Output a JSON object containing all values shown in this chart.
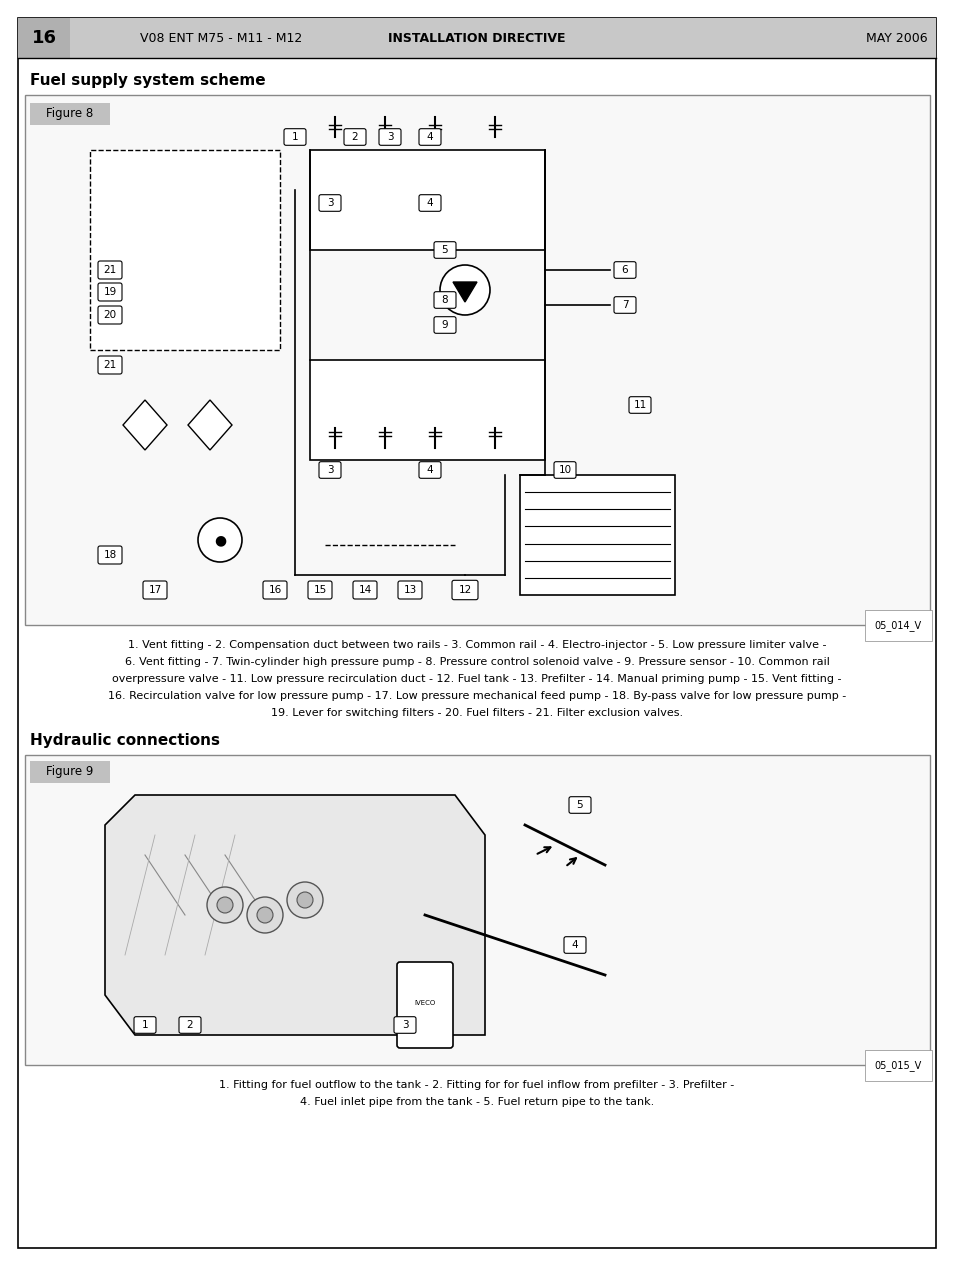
{
  "page_number": "16",
  "header_left": "V08 ENT M75 - M11 - M12",
  "header_center": "INSTALLATION DIRECTIVE",
  "header_right": "MAY 2006",
  "section1_title": "Fuel supply system scheme",
  "figure8_label": "Figure 8",
  "figure8_code": "05_014_V",
  "figure8_caption": "1. Vent fitting - 2. Compensation duct between two rails - 3. Common rail - 4. Electro-injector - 5. Low pressure limiter valve -\n6. Vent fitting - 7. Twin-cylinder high pressure pump - 8. Pressure control solenoid valve - 9. Pressure sensor - 10. Common rail\noverpressure valve - 11. Low pressure recirculation duct - 12. Fuel tank - 13. Prefilter - 14. Manual priming pump - 15. Vent fitting -\n16. Recirculation valve for low pressure pump - 17. Low pressure mechanical feed pump - 18. By-pass valve for low pressure pump -\n19. Lever for switching filters - 20. Fuel filters - 21. Filter exclusion valves.",
  "section2_title": "Hydraulic connections",
  "figure9_label": "Figure 9",
  "figure9_code": "05_015_V",
  "figure9_caption": "1. Fitting for fuel outflow to the tank - 2. Fitting for for fuel inflow from prefilter - 3. Prefilter -\n4. Fuel inlet pipe from the tank - 5. Fuel return pipe to the tank.",
  "bg_color": "#ffffff",
  "header_bg": "#c8c8c8",
  "figure_label_bg": "#c0c0c0",
  "border_color": "#000000",
  "text_color": "#000000"
}
